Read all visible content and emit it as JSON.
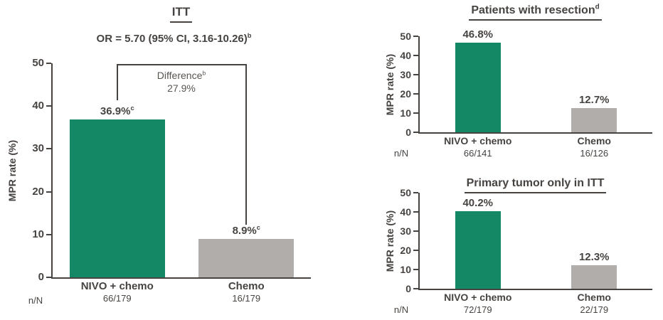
{
  "colors": {
    "nivo_green": "#148864",
    "chemo_gray": "#b1adaa",
    "text_dark": "#474341",
    "annotation_gray": "#595551"
  },
  "chart_data": [
    {
      "id": "itt",
      "type": "bar",
      "title": "ITT",
      "title_sup": "",
      "subtitle": "OR = 5.70 (95% CI, 3.16-10.26)",
      "subtitle_sup": "b",
      "annotation": {
        "label": "Difference",
        "label_sup": "b",
        "value": "27.9%"
      },
      "ylabel": "MPR rate (%)",
      "n_header": "n/N",
      "ylim": [
        0,
        50
      ],
      "yticks": [
        0,
        10,
        20,
        30,
        40,
        50
      ],
      "grid": false,
      "legend": false,
      "categories": [
        "NIVO + chemo",
        "Chemo"
      ],
      "values": [
        36.9,
        8.9
      ],
      "value_labels": [
        "36.9%",
        "8.9%"
      ],
      "value_sups": [
        "c",
        "c"
      ],
      "n_values": [
        "66/179",
        "16/179"
      ],
      "bar_colors": [
        "#148864",
        "#b1adaa"
      ]
    },
    {
      "id": "patients-with-resection",
      "type": "bar",
      "title": "Patients with resection",
      "title_sup": "d",
      "ylabel": "MPR rate (%)",
      "n_header": "n/N",
      "ylim": [
        0,
        50
      ],
      "yticks": [
        0,
        10,
        20,
        30,
        40,
        50
      ],
      "grid": false,
      "legend": false,
      "categories": [
        "NIVO + chemo",
        "Chemo"
      ],
      "values": [
        46.8,
        12.7
      ],
      "value_labels": [
        "46.8%",
        "12.7%"
      ],
      "value_sups": [
        "",
        ""
      ],
      "n_values": [
        "66/141",
        "16/126"
      ],
      "bar_colors": [
        "#148864",
        "#b1adaa"
      ]
    },
    {
      "id": "primary-tumor-only-itt",
      "type": "bar",
      "title": "Primary tumor only in ITT",
      "title_sup": "",
      "ylabel": "MPR rate (%)",
      "n_header": "n/N",
      "ylim": [
        0,
        50
      ],
      "yticks": [
        0,
        10,
        20,
        30,
        40,
        50
      ],
      "grid": false,
      "legend": false,
      "categories": [
        "NIVO + chemo",
        "Chemo"
      ],
      "values": [
        40.2,
        12.3
      ],
      "value_labels": [
        "40.2%",
        "12.3%"
      ],
      "value_sups": [
        "",
        ""
      ],
      "n_values": [
        "72/179",
        "22/179"
      ],
      "bar_colors": [
        "#148864",
        "#b1adaa"
      ]
    }
  ]
}
